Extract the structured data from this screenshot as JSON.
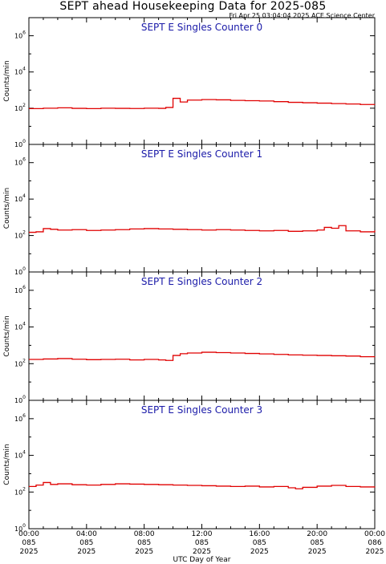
{
  "header": {
    "title": "SEPT ahead Housekeeping Data for 2025-085",
    "timestamp": "Fri Apr 25 03:04:04 2025 ACE Science Center"
  },
  "colors": {
    "trace": "#e00000",
    "panel_title": "#1a1aa8",
    "axis": "#000000"
  },
  "chart_data": [
    {
      "type": "line",
      "title": "SEPT E Singles Counter 0",
      "ylabel": "Counts/min",
      "yscale": "log",
      "ylim_exp": [
        0,
        7
      ],
      "ytick_labels": [
        {
          "base": "10",
          "exp": "0"
        },
        {
          "base": "10",
          "exp": "2"
        },
        {
          "base": "10",
          "exp": "4"
        },
        {
          "base": "10",
          "exp": "6"
        }
      ],
      "xlim_hours": [
        0,
        24
      ],
      "series": [
        {
          "x": [
            0,
            1,
            2,
            3,
            4,
            5,
            6,
            7,
            8,
            9,
            9.5,
            10,
            10.5,
            11,
            12,
            13,
            14,
            15,
            16,
            17,
            18,
            19,
            20,
            21,
            22,
            23,
            24
          ],
          "y": [
            95,
            100,
            105,
            98,
            95,
            100,
            98,
            96,
            100,
            98,
            110,
            350,
            220,
            280,
            300,
            290,
            270,
            260,
            250,
            230,
            210,
            200,
            190,
            180,
            170,
            160,
            155
          ]
        }
      ]
    },
    {
      "type": "line",
      "title": "SEPT E Singles Counter 1",
      "ylabel": "Counts/min",
      "yscale": "log",
      "ylim_exp": [
        0,
        7
      ],
      "ytick_labels": [
        {
          "base": "10",
          "exp": "0"
        },
        {
          "base": "10",
          "exp": "2"
        },
        {
          "base": "10",
          "exp": "4"
        },
        {
          "base": "10",
          "exp": "6"
        }
      ],
      "xlim_hours": [
        0,
        24
      ],
      "series": [
        {
          "x": [
            0,
            0.5,
            1,
            1.5,
            2,
            3,
            4,
            5,
            6,
            7,
            8,
            9,
            10,
            11,
            12,
            13,
            14,
            15,
            16,
            17,
            18,
            19,
            20,
            20.5,
            21,
            21.5,
            22,
            23,
            24
          ],
          "y": [
            150,
            160,
            240,
            220,
            200,
            210,
            190,
            200,
            210,
            230,
            240,
            230,
            220,
            210,
            200,
            210,
            200,
            190,
            180,
            190,
            170,
            180,
            200,
            280,
            250,
            350,
            180,
            160,
            190
          ]
        }
      ]
    },
    {
      "type": "line",
      "title": "SEPT E Singles Counter 2",
      "ylabel": "Counts/min",
      "yscale": "log",
      "ylim_exp": [
        0,
        7
      ],
      "ytick_labels": [
        {
          "base": "10",
          "exp": "0"
        },
        {
          "base": "10",
          "exp": "2"
        },
        {
          "base": "10",
          "exp": "4"
        },
        {
          "base": "10",
          "exp": "6"
        }
      ],
      "xlim_hours": [
        0,
        24
      ],
      "series": [
        {
          "x": [
            0,
            1,
            2,
            3,
            4,
            5,
            6,
            7,
            8,
            9,
            9.5,
            10,
            10.5,
            11,
            12,
            13,
            14,
            15,
            16,
            17,
            18,
            19,
            20,
            21,
            22,
            23,
            24
          ],
          "y": [
            170,
            180,
            190,
            175,
            165,
            170,
            175,
            160,
            170,
            160,
            150,
            280,
            350,
            380,
            420,
            400,
            380,
            360,
            340,
            320,
            300,
            290,
            280,
            270,
            260,
            240,
            230
          ]
        }
      ]
    },
    {
      "type": "line",
      "title": "SEPT E Singles Counter 3",
      "ylabel": "Counts/min",
      "yscale": "log",
      "ylim_exp": [
        0,
        7
      ],
      "ytick_labels": [
        {
          "base": "10",
          "exp": "0"
        },
        {
          "base": "10",
          "exp": "2"
        },
        {
          "base": "10",
          "exp": "4"
        },
        {
          "base": "10",
          "exp": "6"
        }
      ],
      "xlim_hours": [
        0,
        24
      ],
      "series": [
        {
          "x": [
            0,
            0.5,
            1,
            1.5,
            2,
            3,
            4,
            5,
            6,
            7,
            8,
            9,
            10,
            11,
            12,
            13,
            14,
            15,
            16,
            17,
            18,
            18.5,
            19,
            20,
            21,
            22,
            23,
            24
          ],
          "y": [
            200,
            240,
            330,
            260,
            280,
            250,
            240,
            260,
            280,
            270,
            260,
            250,
            240,
            230,
            220,
            210,
            200,
            210,
            190,
            200,
            170,
            150,
            180,
            210,
            230,
            200,
            190,
            180
          ]
        }
      ]
    }
  ],
  "xaxis": {
    "label": "UTC Day of Year",
    "ticks": [
      {
        "hour": 0,
        "time": "00:00",
        "doy": "085",
        "year": "2025"
      },
      {
        "hour": 4,
        "time": "04:00",
        "doy": "085",
        "year": "2025"
      },
      {
        "hour": 8,
        "time": "08:00",
        "doy": "085",
        "year": "2025"
      },
      {
        "hour": 12,
        "time": "12:00",
        "doy": "085",
        "year": "2025"
      },
      {
        "hour": 16,
        "time": "16:00",
        "doy": "085",
        "year": "2025"
      },
      {
        "hour": 20,
        "time": "20:00",
        "doy": "085",
        "year": "2025"
      },
      {
        "hour": 24,
        "time": "00:00",
        "doy": "086",
        "year": "2025"
      }
    ]
  }
}
